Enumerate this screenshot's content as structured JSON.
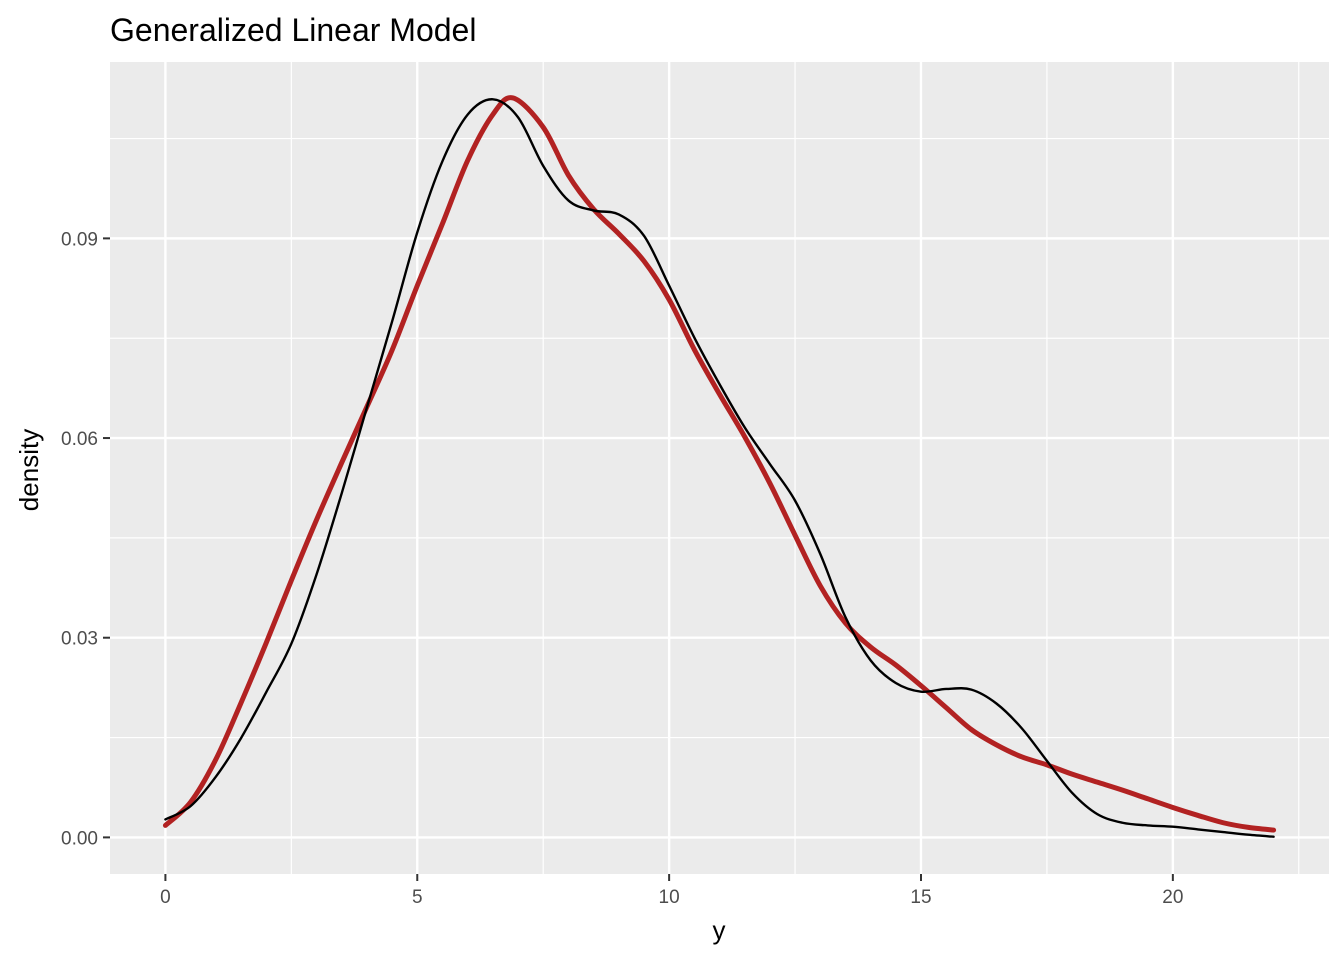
{
  "chart_data": {
    "type": "line",
    "title": "Generalized Linear Model",
    "xlabel": "y",
    "ylabel": "density",
    "xlim": [
      -1.1,
      23.1
    ],
    "ylim": [
      -0.0055,
      0.1165
    ],
    "x_ticks": [
      0,
      5,
      10,
      15,
      20
    ],
    "x_tick_labels": [
      "0",
      "5",
      "10",
      "15",
      "20"
    ],
    "y_ticks": [
      0.0,
      0.03,
      0.06,
      0.09
    ],
    "y_tick_labels": [
      "0.00",
      "0.03",
      "0.06",
      "0.09"
    ],
    "x_minor_ticks": [
      2.5,
      7.5,
      12.5,
      17.5,
      22.5
    ],
    "y_minor_ticks": [
      0.015,
      0.045,
      0.075,
      0.105
    ],
    "grid": true,
    "panel_background": "#ebebeb",
    "grid_color": "#ffffff",
    "series": [
      {
        "color": "#b22222",
        "x": [
          0,
          0.5,
          1,
          1.5,
          2,
          2.5,
          3,
          3.5,
          4,
          4.5,
          5,
          5.5,
          6,
          6.5,
          6.9,
          7.5,
          8,
          8.5,
          9,
          9.5,
          10,
          10.5,
          11,
          11.5,
          12,
          12.5,
          13,
          13.5,
          14,
          14.5,
          15,
          15.5,
          16,
          16.5,
          17,
          17.5,
          18,
          18.5,
          19,
          19.5,
          20,
          20.5,
          21,
          21.5,
          22
        ],
        "y": [
          0.0018,
          0.0053,
          0.0117,
          0.0202,
          0.0292,
          0.0386,
          0.0477,
          0.0563,
          0.0647,
          0.0732,
          0.0829,
          0.0922,
          0.1017,
          0.1086,
          0.1111,
          0.1067,
          0.0995,
          0.0944,
          0.0907,
          0.0866,
          0.0808,
          0.0733,
          0.0666,
          0.0602,
          0.0532,
          0.0454,
          0.0378,
          0.0322,
          0.0286,
          0.0259,
          0.0228,
          0.0195,
          0.0162,
          0.0139,
          0.0121,
          0.0109,
          0.0095,
          0.0083,
          0.0071,
          0.0058,
          0.0045,
          0.0033,
          0.0022,
          0.0015,
          0.0011
        ]
      },
      {
        "color": "#000000",
        "x": [
          0,
          0.5,
          1,
          1.5,
          2,
          2.5,
          3,
          3.5,
          4,
          4.5,
          5,
          5.5,
          6,
          6.5,
          7,
          7.5,
          8,
          8.5,
          9,
          9.5,
          10,
          10.5,
          11,
          11.5,
          12,
          12.5,
          13,
          13.5,
          14,
          14.5,
          15,
          15.5,
          16,
          16.5,
          17,
          17.5,
          18,
          18.5,
          19,
          19.5,
          20,
          20.5,
          21,
          21.5,
          22
        ],
        "y": [
          0.0027,
          0.0047,
          0.0091,
          0.0149,
          0.0218,
          0.0291,
          0.0395,
          0.0517,
          0.0646,
          0.0775,
          0.0909,
          0.1016,
          0.1086,
          0.1109,
          0.1082,
          0.1009,
          0.0957,
          0.0942,
          0.0936,
          0.0904,
          0.0829,
          0.0751,
          0.0681,
          0.0616,
          0.0561,
          0.0506,
          0.0426,
          0.0331,
          0.0266,
          0.0232,
          0.0219,
          0.0223,
          0.0222,
          0.0201,
          0.0164,
          0.0115,
          0.0067,
          0.0035,
          0.0022,
          0.0018,
          0.0016,
          0.0012,
          0.0008,
          0.0004,
          0.0001
        ]
      }
    ]
  }
}
